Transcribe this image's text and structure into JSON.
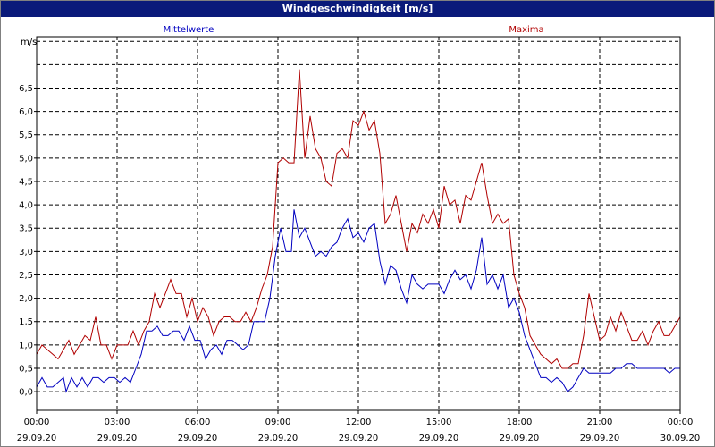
{
  "window": {
    "title": "Windgeschwindigkeit [m/s]"
  },
  "chart_data": {
    "type": "line",
    "title": "Windgeschwindigkeit [m/s]",
    "ylabel": "m/s",
    "xlabel": "",
    "ylim": [
      -0.4,
      7.6
    ],
    "xlim": [
      0,
      24
    ],
    "grid": true,
    "legend_placement": "top",
    "y_ticks": [
      "0,0",
      "0,5",
      "1,0",
      "1,5",
      "2,0",
      "2,5",
      "3,0",
      "3,5",
      "4,0",
      "4,5",
      "5,0",
      "5,5",
      "6,0",
      "6,5"
    ],
    "x_ticks": [
      {
        "time": "00:00",
        "date": "29.09.20"
      },
      {
        "time": "03:00",
        "date": "29.09.20"
      },
      {
        "time": "06:00",
        "date": "29.09.20"
      },
      {
        "time": "09:00",
        "date": "29.09.20"
      },
      {
        "time": "12:00",
        "date": "29.09.20"
      },
      {
        "time": "15:00",
        "date": "29.09.20"
      },
      {
        "time": "18:00",
        "date": "29.09.20"
      },
      {
        "time": "21:00",
        "date": "29.09.20"
      },
      {
        "time": "00:00",
        "date": "30.09.20"
      }
    ],
    "series": [
      {
        "name": "Mittelwerte",
        "color": "#0000c0",
        "points": [
          [
            0.0,
            0.1
          ],
          [
            0.2,
            0.3
          ],
          [
            0.4,
            0.1
          ],
          [
            0.6,
            0.1
          ],
          [
            0.8,
            0.2
          ],
          [
            1.0,
            0.3
          ],
          [
            1.1,
            0.0
          ],
          [
            1.3,
            0.3
          ],
          [
            1.5,
            0.1
          ],
          [
            1.7,
            0.3
          ],
          [
            1.9,
            0.1
          ],
          [
            2.1,
            0.3
          ],
          [
            2.3,
            0.3
          ],
          [
            2.5,
            0.2
          ],
          [
            2.7,
            0.3
          ],
          [
            2.9,
            0.3
          ],
          [
            3.1,
            0.2
          ],
          [
            3.3,
            0.3
          ],
          [
            3.5,
            0.2
          ],
          [
            3.7,
            0.5
          ],
          [
            3.9,
            0.8
          ],
          [
            4.1,
            1.3
          ],
          [
            4.3,
            1.3
          ],
          [
            4.5,
            1.4
          ],
          [
            4.7,
            1.2
          ],
          [
            4.9,
            1.2
          ],
          [
            5.1,
            1.3
          ],
          [
            5.3,
            1.3
          ],
          [
            5.5,
            1.1
          ],
          [
            5.7,
            1.4
          ],
          [
            5.9,
            1.1
          ],
          [
            6.1,
            1.1
          ],
          [
            6.3,
            0.7
          ],
          [
            6.5,
            0.9
          ],
          [
            6.7,
            1.0
          ],
          [
            6.9,
            0.8
          ],
          [
            7.1,
            1.1
          ],
          [
            7.3,
            1.1
          ],
          [
            7.5,
            1.0
          ],
          [
            7.7,
            0.9
          ],
          [
            7.9,
            1.0
          ],
          [
            8.1,
            1.5
          ],
          [
            8.3,
            1.5
          ],
          [
            8.5,
            1.5
          ],
          [
            8.7,
            2.0
          ],
          [
            8.9,
            2.9
          ],
          [
            9.1,
            3.5
          ],
          [
            9.3,
            3.0
          ],
          [
            9.5,
            3.0
          ],
          [
            9.6,
            3.9
          ],
          [
            9.8,
            3.3
          ],
          [
            10.0,
            3.5
          ],
          [
            10.2,
            3.2
          ],
          [
            10.4,
            2.9
          ],
          [
            10.6,
            3.0
          ],
          [
            10.8,
            2.9
          ],
          [
            11.0,
            3.1
          ],
          [
            11.2,
            3.2
          ],
          [
            11.4,
            3.5
          ],
          [
            11.6,
            3.7
          ],
          [
            11.8,
            3.3
          ],
          [
            12.0,
            3.4
          ],
          [
            12.2,
            3.2
          ],
          [
            12.4,
            3.5
          ],
          [
            12.6,
            3.6
          ],
          [
            12.8,
            2.8
          ],
          [
            13.0,
            2.3
          ],
          [
            13.2,
            2.7
          ],
          [
            13.4,
            2.6
          ],
          [
            13.6,
            2.2
          ],
          [
            13.8,
            1.9
          ],
          [
            14.0,
            2.5
          ],
          [
            14.2,
            2.3
          ],
          [
            14.4,
            2.2
          ],
          [
            14.6,
            2.3
          ],
          [
            14.8,
            2.3
          ],
          [
            15.0,
            2.3
          ],
          [
            15.2,
            2.1
          ],
          [
            15.4,
            2.4
          ],
          [
            15.6,
            2.6
          ],
          [
            15.8,
            2.4
          ],
          [
            16.0,
            2.5
          ],
          [
            16.2,
            2.2
          ],
          [
            16.4,
            2.6
          ],
          [
            16.6,
            3.3
          ],
          [
            16.8,
            2.3
          ],
          [
            17.0,
            2.5
          ],
          [
            17.2,
            2.2
          ],
          [
            17.4,
            2.5
          ],
          [
            17.6,
            1.8
          ],
          [
            17.8,
            2.0
          ],
          [
            18.0,
            1.7
          ],
          [
            18.2,
            1.2
          ],
          [
            18.4,
            0.9
          ],
          [
            18.6,
            0.6
          ],
          [
            18.8,
            0.3
          ],
          [
            19.0,
            0.3
          ],
          [
            19.2,
            0.2
          ],
          [
            19.4,
            0.3
          ],
          [
            19.6,
            0.2
          ],
          [
            19.8,
            0.0
          ],
          [
            20.0,
            0.1
          ],
          [
            20.2,
            0.3
          ],
          [
            20.4,
            0.5
          ],
          [
            20.6,
            0.4
          ],
          [
            20.8,
            0.4
          ],
          [
            21.0,
            0.4
          ],
          [
            21.2,
            0.4
          ],
          [
            21.4,
            0.4
          ],
          [
            21.6,
            0.5
          ],
          [
            21.8,
            0.5
          ],
          [
            22.0,
            0.6
          ],
          [
            22.2,
            0.6
          ],
          [
            22.4,
            0.5
          ],
          [
            22.6,
            0.5
          ],
          [
            22.8,
            0.5
          ],
          [
            23.0,
            0.5
          ],
          [
            23.2,
            0.5
          ],
          [
            23.4,
            0.5
          ],
          [
            23.6,
            0.4
          ],
          [
            23.8,
            0.5
          ],
          [
            24.0,
            0.5
          ]
        ]
      },
      {
        "name": "Maxima",
        "color": "#b00000",
        "points": [
          [
            0.0,
            0.8
          ],
          [
            0.2,
            1.0
          ],
          [
            0.4,
            0.9
          ],
          [
            0.6,
            0.8
          ],
          [
            0.8,
            0.7
          ],
          [
            1.0,
            0.9
          ],
          [
            1.2,
            1.1
          ],
          [
            1.4,
            0.8
          ],
          [
            1.6,
            1.0
          ],
          [
            1.8,
            1.2
          ],
          [
            2.0,
            1.1
          ],
          [
            2.2,
            1.6
          ],
          [
            2.4,
            1.0
          ],
          [
            2.6,
            1.0
          ],
          [
            2.8,
            0.7
          ],
          [
            3.0,
            1.0
          ],
          [
            3.2,
            1.0
          ],
          [
            3.4,
            1.0
          ],
          [
            3.6,
            1.3
          ],
          [
            3.8,
            1.0
          ],
          [
            4.0,
            1.3
          ],
          [
            4.2,
            1.5
          ],
          [
            4.4,
            2.1
          ],
          [
            4.6,
            1.8
          ],
          [
            4.8,
            2.1
          ],
          [
            5.0,
            2.4
          ],
          [
            5.2,
            2.1
          ],
          [
            5.4,
            2.1
          ],
          [
            5.6,
            1.6
          ],
          [
            5.8,
            2.0
          ],
          [
            6.0,
            1.5
          ],
          [
            6.2,
            1.8
          ],
          [
            6.4,
            1.6
          ],
          [
            6.6,
            1.2
          ],
          [
            6.8,
            1.5
          ],
          [
            7.0,
            1.6
          ],
          [
            7.2,
            1.6
          ],
          [
            7.4,
            1.5
          ],
          [
            7.6,
            1.5
          ],
          [
            7.8,
            1.7
          ],
          [
            8.0,
            1.5
          ],
          [
            8.2,
            1.8
          ],
          [
            8.4,
            2.2
          ],
          [
            8.6,
            2.5
          ],
          [
            8.8,
            3.1
          ],
          [
            9.0,
            4.9
          ],
          [
            9.2,
            5.0
          ],
          [
            9.4,
            4.9
          ],
          [
            9.6,
            4.9
          ],
          [
            9.8,
            6.9
          ],
          [
            10.0,
            5.0
          ],
          [
            10.2,
            5.9
          ],
          [
            10.4,
            5.2
          ],
          [
            10.6,
            5.0
          ],
          [
            10.8,
            4.5
          ],
          [
            11.0,
            4.4
          ],
          [
            11.2,
            5.1
          ],
          [
            11.4,
            5.2
          ],
          [
            11.6,
            5.0
          ],
          [
            11.8,
            5.8
          ],
          [
            12.0,
            5.7
          ],
          [
            12.2,
            6.0
          ],
          [
            12.4,
            5.6
          ],
          [
            12.6,
            5.8
          ],
          [
            12.8,
            5.1
          ],
          [
            13.0,
            3.6
          ],
          [
            13.2,
            3.8
          ],
          [
            13.4,
            4.2
          ],
          [
            13.6,
            3.6
          ],
          [
            13.8,
            3.0
          ],
          [
            14.0,
            3.6
          ],
          [
            14.2,
            3.4
          ],
          [
            14.4,
            3.8
          ],
          [
            14.6,
            3.6
          ],
          [
            14.8,
            3.9
          ],
          [
            15.0,
            3.5
          ],
          [
            15.2,
            4.4
          ],
          [
            15.4,
            4.0
          ],
          [
            15.6,
            4.1
          ],
          [
            15.8,
            3.6
          ],
          [
            16.0,
            4.2
          ],
          [
            16.2,
            4.1
          ],
          [
            16.4,
            4.5
          ],
          [
            16.6,
            4.9
          ],
          [
            16.8,
            4.2
          ],
          [
            17.0,
            3.6
          ],
          [
            17.2,
            3.8
          ],
          [
            17.4,
            3.6
          ],
          [
            17.6,
            3.7
          ],
          [
            17.8,
            2.5
          ],
          [
            18.0,
            2.1
          ],
          [
            18.2,
            1.8
          ],
          [
            18.4,
            1.2
          ],
          [
            18.6,
            1.0
          ],
          [
            18.8,
            0.8
          ],
          [
            19.0,
            0.7
          ],
          [
            19.2,
            0.6
          ],
          [
            19.4,
            0.7
          ],
          [
            19.6,
            0.5
          ],
          [
            19.8,
            0.5
          ],
          [
            20.0,
            0.6
          ],
          [
            20.2,
            0.6
          ],
          [
            20.4,
            1.2
          ],
          [
            20.6,
            2.1
          ],
          [
            20.8,
            1.6
          ],
          [
            21.0,
            1.1
          ],
          [
            21.2,
            1.2
          ],
          [
            21.4,
            1.6
          ],
          [
            21.6,
            1.3
          ],
          [
            21.8,
            1.7
          ],
          [
            22.0,
            1.4
          ],
          [
            22.2,
            1.1
          ],
          [
            22.4,
            1.1
          ],
          [
            22.6,
            1.3
          ],
          [
            22.8,
            1.0
          ],
          [
            23.0,
            1.3
          ],
          [
            23.2,
            1.5
          ],
          [
            23.4,
            1.2
          ],
          [
            23.6,
            1.2
          ],
          [
            23.8,
            1.4
          ],
          [
            24.0,
            1.6
          ]
        ]
      }
    ]
  }
}
